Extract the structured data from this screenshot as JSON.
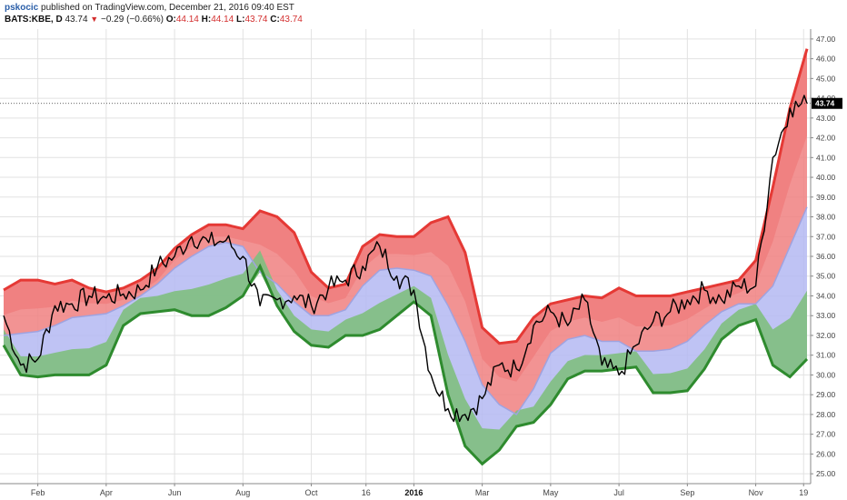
{
  "header": {
    "author": "pskocic",
    "published": "published on TradingView.com, December 21, 2016 09:40 EST",
    "symbol": "BATS:KBE, D",
    "last": "43.74",
    "change_arrow": "▼",
    "change": "−0.29 (−0.66%)",
    "o_label": "O:",
    "o_value": "44.14",
    "h_label": "H:",
    "h_value": "44.14",
    "l_label": "L:",
    "l_value": "43.74",
    "c_label": "C:",
    "c_value": "43.74"
  },
  "colors": {
    "price": "#000000",
    "upper_band": "#e53935",
    "lower_band": "#2e8b2e",
    "upper_fill": "#f08080",
    "mid_fill": "#b4b8f2",
    "lower_fill": "#7fbf7f",
    "midline": "#9fa3e0",
    "grid": "#e2e2e2",
    "price_label_bg": "#000000"
  },
  "chart_data": {
    "type": "line",
    "ylim": [
      24.5,
      47.5
    ],
    "y_ticks": [
      "25.00",
      "26.00",
      "27.00",
      "28.00",
      "29.00",
      "30.00",
      "31.00",
      "32.00",
      "33.00",
      "34.00",
      "35.00",
      "36.00",
      "37.00",
      "38.00",
      "39.00",
      "40.00",
      "41.00",
      "42.00",
      "43.00",
      "44.00",
      "45.00",
      "46.00",
      "47.00"
    ],
    "x_ticks": [
      {
        "label": "Feb",
        "x": 1,
        "bold": false
      },
      {
        "label": "Apr",
        "x": 3,
        "bold": false
      },
      {
        "label": "Jun",
        "x": 5,
        "bold": false
      },
      {
        "label": "Aug",
        "x": 7,
        "bold": false
      },
      {
        "label": "Oct",
        "x": 9,
        "bold": false
      },
      {
        "label": "16",
        "x": 10.6,
        "bold": false
      },
      {
        "label": "2016",
        "x": 12,
        "bold": true
      },
      {
        "label": "Mar",
        "x": 14,
        "bold": false
      },
      {
        "label": "May",
        "x": 16,
        "bold": false
      },
      {
        "label": "Jul",
        "x": 18,
        "bold": false
      },
      {
        "label": "Sep",
        "x": 20,
        "bold": false
      },
      {
        "label": "Nov",
        "x": 22,
        "bold": false
      },
      {
        "label": "19",
        "x": 23.4,
        "bold": false
      }
    ],
    "last_price": "43.74",
    "last_value": 43.74,
    "x": [
      0,
      0.5,
      1,
      1.5,
      2,
      2.5,
      3,
      3.5,
      4,
      4.5,
      5,
      5.5,
      6,
      6.5,
      7,
      7.5,
      8,
      8.5,
      9,
      9.5,
      10,
      10.5,
      11,
      11.5,
      12,
      12.5,
      13,
      13.5,
      14,
      14.5,
      15,
      15.5,
      16,
      16.5,
      17,
      17.5,
      18,
      18.5,
      19,
      19.5,
      20,
      20.5,
      21,
      21.5,
      22,
      22.5,
      23,
      23.5
    ],
    "series": [
      {
        "role": "upper",
        "values": [
          34.3,
          34.8,
          34.8,
          34.6,
          34.8,
          34.4,
          34.2,
          34.4,
          34.8,
          35.4,
          36.4,
          37.1,
          37.6,
          37.6,
          37.4,
          38.3,
          38.0,
          37.2,
          35.2,
          34.4,
          34.6,
          36.5,
          37.1,
          37.0,
          37.0,
          37.7,
          38.0,
          36.2,
          32.4,
          31.6,
          31.7,
          32.9,
          33.6,
          33.8,
          34.0,
          33.9,
          34.4,
          34.0,
          34.0,
          34.0,
          34.2,
          34.4,
          34.6,
          34.8,
          35.8,
          39.5,
          43.5,
          46.5
        ]
      },
      {
        "role": "middle",
        "values": [
          32.0,
          32.1,
          32.2,
          32.5,
          32.9,
          33.0,
          33.1,
          33.5,
          34.0,
          34.6,
          35.4,
          36.0,
          36.5,
          36.7,
          36.5,
          35.2,
          34.6,
          33.7,
          33.0,
          33.0,
          33.3,
          34.5,
          35.3,
          35.4,
          35.3,
          35.0,
          33.5,
          31.7,
          29.5,
          28.5,
          28.0,
          29.3,
          31.1,
          31.8,
          32.0,
          31.7,
          31.7,
          31.2,
          31.2,
          31.3,
          31.7,
          32.5,
          33.2,
          33.6,
          33.6,
          34.5,
          36.5,
          38.5
        ]
      },
      {
        "role": "lower",
        "values": [
          31.5,
          30.0,
          29.9,
          30.0,
          30.0,
          30.0,
          30.5,
          32.5,
          33.1,
          33.2,
          33.3,
          33.0,
          33.0,
          33.4,
          34.0,
          35.5,
          33.5,
          32.2,
          31.5,
          31.4,
          32.0,
          32.0,
          32.3,
          33.0,
          33.7,
          33.0,
          29.0,
          26.4,
          25.5,
          26.2,
          27.4,
          27.6,
          28.5,
          29.8,
          30.2,
          30.2,
          30.3,
          30.4,
          29.1,
          29.1,
          29.2,
          30.3,
          31.8,
          32.5,
          32.8,
          30.5,
          29.9,
          30.8
        ]
      },
      {
        "role": "price",
        "values": [
          33.0,
          30.5,
          30.8,
          33.5,
          33.6,
          34.0,
          33.9,
          34.1,
          34.3,
          35.5,
          36.0,
          37.0,
          36.7,
          36.8,
          36.0,
          33.5,
          33.8,
          34.0,
          33.5,
          34.4,
          34.8,
          35.5,
          36.5,
          35.0,
          34.3,
          30.0,
          28.3,
          28.0,
          28.8,
          30.5,
          30.3,
          32.5,
          33.2,
          32.5,
          33.8,
          30.5,
          30.0,
          31.5,
          32.7,
          33.2,
          33.8,
          34.3,
          33.8,
          34.5,
          34.5,
          41.0,
          43.5,
          43.74
        ]
      }
    ]
  }
}
